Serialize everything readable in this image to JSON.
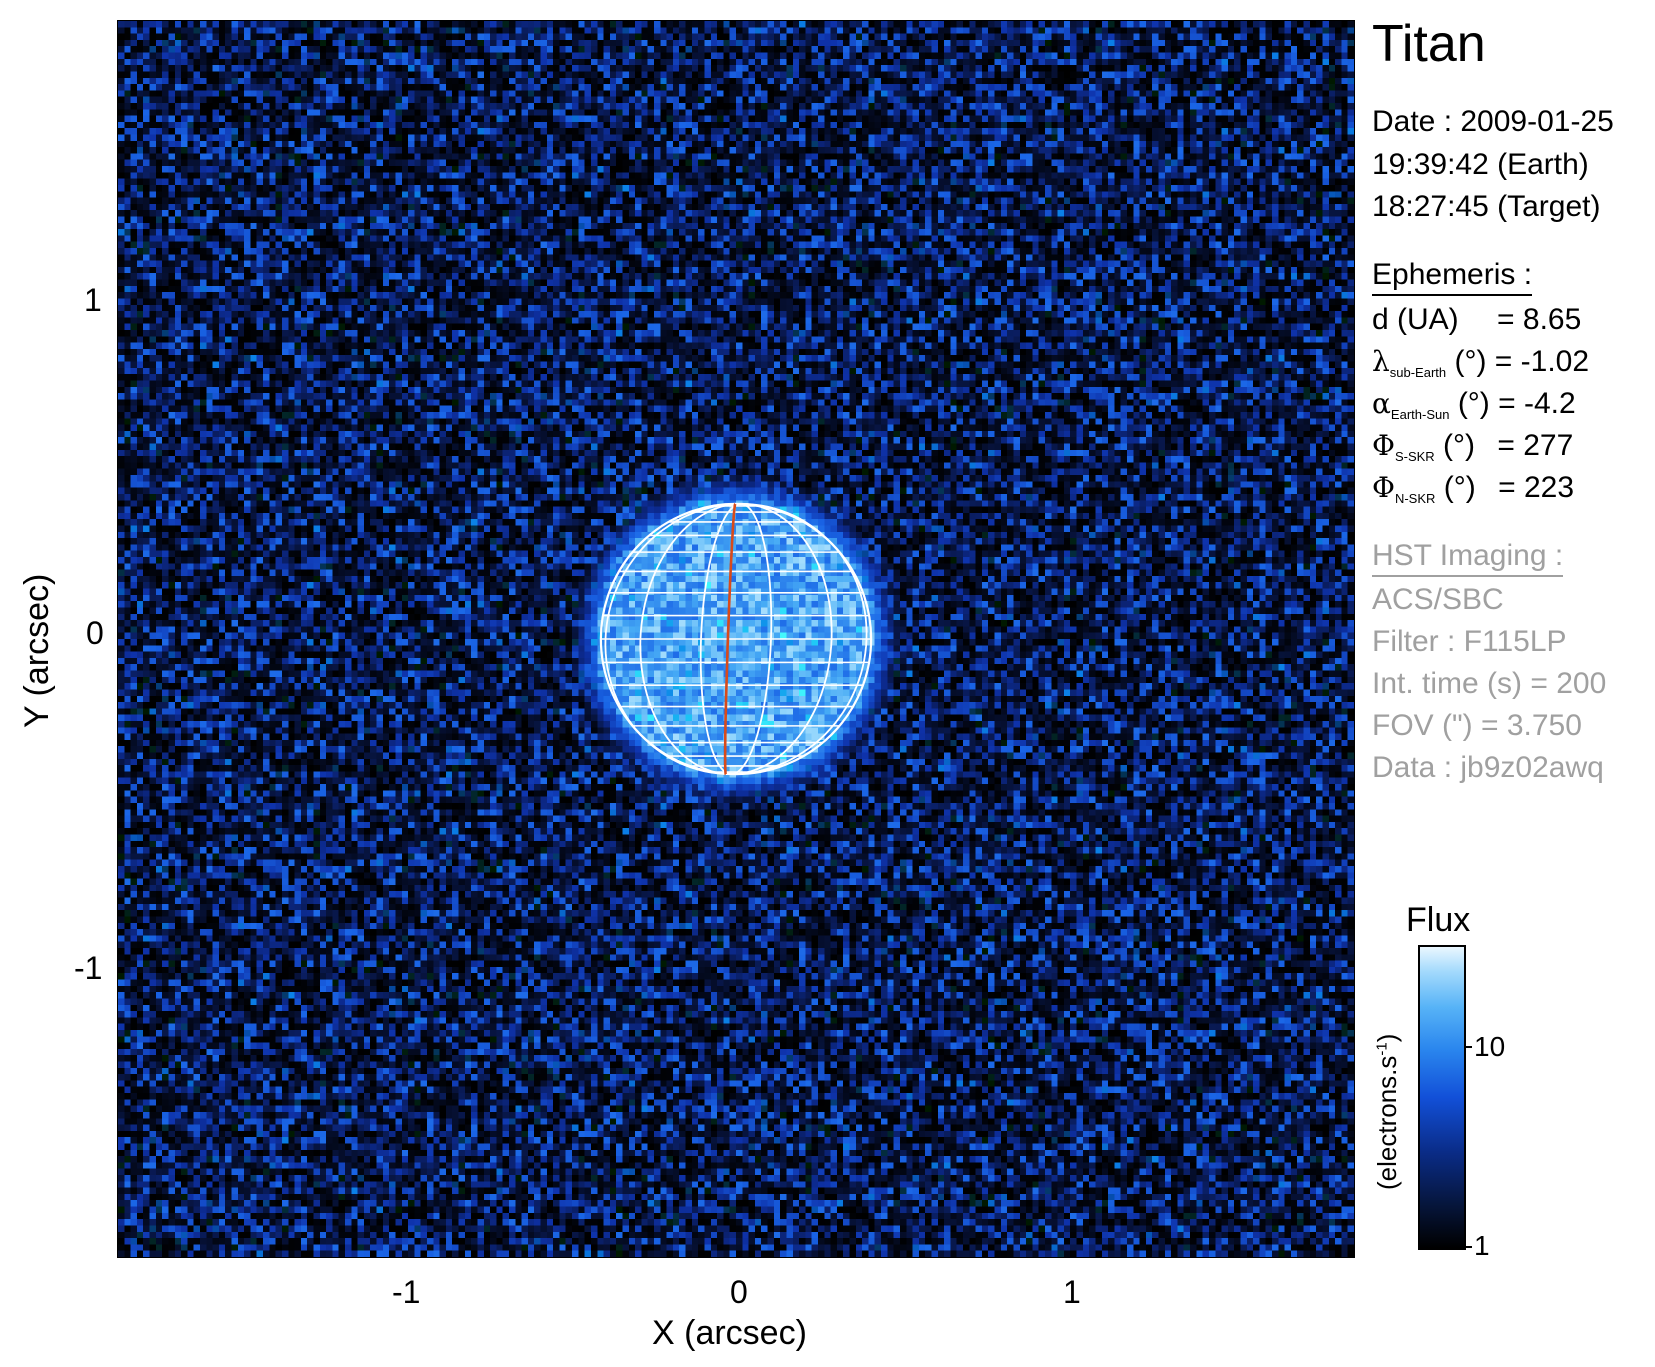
{
  "target": "Titan",
  "observation": {
    "date_line": "Date : 2009-01-25",
    "time_earth": "19:39:42 (Earth)",
    "time_target": "18:27:45 (Target)"
  },
  "ephemeris": {
    "header": "Ephemeris :",
    "distance": {
      "label": "d (UA)",
      "value": "= 8.65"
    },
    "sub_earth_longitude": {
      "symbol": "λ",
      "subscript": "sub-Earth",
      "unit": "(°)",
      "value": "= -1.02"
    },
    "phase_angle": {
      "symbol": "α",
      "subscript": "Earth-Sun",
      "unit": "(°)",
      "value": "= -4.2"
    },
    "s_skr_phase": {
      "symbol": "Φ",
      "subscript": "S-SKR",
      "unit": "(°)",
      "value": "= 277"
    },
    "n_skr_phase": {
      "symbol": "Φ",
      "subscript": "N-SKR",
      "unit": "(°)",
      "value": "= 223"
    }
  },
  "hst_imaging": {
    "header": "HST Imaging :",
    "instrument": "ACS/SBC",
    "filter": "Filter : F115LP",
    "int_time": "Int. time (s) = 200",
    "fov": "FOV (\") = 3.750",
    "data": "Data : jb9z02awq"
  },
  "axes": {
    "x_title": "X (arcsec)",
    "y_title": "Y (arcsec)",
    "x_ticks": [
      "-1",
      "0",
      "1"
    ],
    "y_ticks": [
      "1",
      "0",
      "-1"
    ],
    "range_arcsec": [
      -1.875,
      1.875
    ]
  },
  "colorbar": {
    "title": "Flux",
    "unit": "(electrons.s",
    "unit_exp": "-1",
    "unit_close": ")",
    "ticks": [
      "10",
      "1"
    ],
    "scale": "log",
    "colors": [
      "#000000",
      "#0a2c88",
      "#1250d8",
      "#2a86ee",
      "#57b3f7",
      "#eaf7ff"
    ]
  },
  "globe": {
    "radius_arcsec": 0.41,
    "grid_color": "#ffffff",
    "meridian_color": "#d84a1a"
  }
}
